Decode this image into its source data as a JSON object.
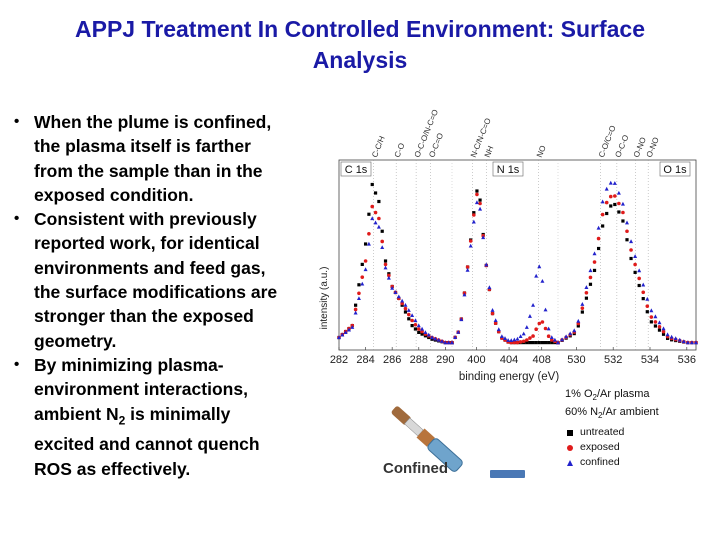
{
  "slide": {
    "title_line1": "APPJ Treatment In Controlled Environment: Surface",
    "title_line2": "Analysis"
  },
  "bullets": [
    [
      "When the plume is confined,",
      "the plasma itself is farther",
      "from the sample than in the",
      "exposed condition."
    ],
    [
      "Consistent with previously",
      "reported work, for identical",
      "environments and feed gas,",
      "the surface modifications are",
      "stronger than the exposed",
      "geometry."
    ],
    [
      "By minimizing plasma-",
      "environment interactions,",
      "ambient N",
      "2",
      " is minimally",
      "excited and cannot quench",
      "ROS as effectively."
    ]
  ],
  "figure": {
    "ylabel": "intensity (a.u.)",
    "xlabel": "binding energy (eV)",
    "panels": [
      {
        "label": "C 1s",
        "ticks": [
          "282",
          "284",
          "286",
          "288",
          "290"
        ]
      },
      {
        "label": "N 1s",
        "ticks": [
          "400",
          "404",
          "408"
        ]
      },
      {
        "label": "O 1s",
        "ticks": [
          "530",
          "532",
          "534",
          "536"
        ]
      }
    ],
    "peak_labels": {
      "c": [
        "C-C/H",
        "C-O",
        "O-C-O/N-C=O",
        "O-C=O"
      ],
      "n": [
        "N-C/N-C=O",
        "NH",
        "NO"
      ],
      "o": [
        "C-O/C=O",
        "O-C-O",
        "O-NO",
        "O-NO"
      ]
    },
    "colors": {
      "untreated": "#000000",
      "exposed": "#e01b1b",
      "confined": "#2222cc"
    }
  },
  "legend": {
    "line1": [
      "1% O",
      "2",
      "/Ar plasma"
    ],
    "line2": [
      "60% N",
      "2",
      "/Ar ambient"
    ],
    "entries": [
      {
        "label": "untreated",
        "color": "#000000",
        "marker": "square"
      },
      {
        "label": "exposed",
        "color": "#e01b1b",
        "marker": "circle"
      },
      {
        "label": "confined",
        "color": "#2222cc",
        "marker": "triangle"
      }
    ]
  },
  "diagram": {
    "label": "Confined"
  },
  "chart_data": {
    "type": "line",
    "xlabel": "binding energy (eV)",
    "ylabel": "intensity (a.u.)",
    "grid": false,
    "legend_position": "bottom-right",
    "panels": [
      {
        "label": "C 1s",
        "xlim": [
          282,
          290.5
        ],
        "x": [
          282,
          283,
          284,
          284.5,
          285,
          285.5,
          286,
          286.5,
          287,
          287.5,
          288,
          288.5,
          289,
          290
        ],
        "series": [
          {
            "name": "untreated",
            "values": [
              0.05,
              0.12,
              0.6,
              0.95,
              0.85,
              0.5,
              0.35,
              0.28,
              0.2,
              0.12,
              0.08,
              0.06,
              0.04,
              0.02
            ]
          },
          {
            "name": "exposed",
            "values": [
              0.05,
              0.12,
              0.5,
              0.82,
              0.75,
              0.48,
              0.35,
              0.28,
              0.22,
              0.15,
              0.1,
              0.07,
              0.05,
              0.02
            ]
          },
          {
            "name": "confined",
            "values": [
              0.05,
              0.11,
              0.45,
              0.75,
              0.7,
              0.46,
              0.34,
              0.29,
              0.24,
              0.18,
              0.12,
              0.08,
              0.05,
              0.02
            ]
          }
        ]
      },
      {
        "label": "N 1s",
        "xlim": [
          397,
          410
        ],
        "x": [
          397,
          398,
          399,
          400,
          400.5,
          401,
          402,
          403,
          404,
          405,
          406,
          407,
          407.5,
          408,
          408.5,
          409,
          410
        ],
        "series": [
          {
            "name": "untreated",
            "values": [
              0.02,
              0.1,
              0.5,
              0.92,
              0.85,
              0.55,
              0.18,
              0.05,
              0.02,
              0.02,
              0.02,
              0.02,
              0.02,
              0.02,
              0.02,
              0.02,
              0.02
            ]
          },
          {
            "name": "exposed",
            "values": [
              0.02,
              0.1,
              0.5,
              0.9,
              0.83,
              0.55,
              0.18,
              0.05,
              0.02,
              0.02,
              0.03,
              0.06,
              0.12,
              0.15,
              0.1,
              0.04,
              0.02
            ]
          },
          {
            "name": "confined",
            "values": [
              0.02,
              0.1,
              0.48,
              0.85,
              0.8,
              0.55,
              0.2,
              0.06,
              0.03,
              0.04,
              0.08,
              0.25,
              0.5,
              0.42,
              0.2,
              0.06,
              0.02
            ]
          }
        ]
      },
      {
        "label": "O 1s",
        "xlim": [
          529,
          536.5
        ],
        "x": [
          529,
          530,
          531,
          531.5,
          532,
          532.5,
          533,
          534,
          535,
          536
        ],
        "series": [
          {
            "name": "untreated",
            "values": [
              0.02,
              0.08,
              0.45,
              0.75,
              0.85,
              0.75,
              0.5,
              0.15,
              0.04,
              0.02
            ]
          },
          {
            "name": "exposed",
            "values": [
              0.02,
              0.09,
              0.5,
              0.82,
              0.9,
              0.8,
              0.55,
              0.18,
              0.05,
              0.02
            ]
          },
          {
            "name": "confined",
            "values": [
              0.02,
              0.1,
              0.55,
              0.9,
              0.98,
              0.85,
              0.6,
              0.22,
              0.06,
              0.02
            ]
          }
        ]
      }
    ]
  }
}
